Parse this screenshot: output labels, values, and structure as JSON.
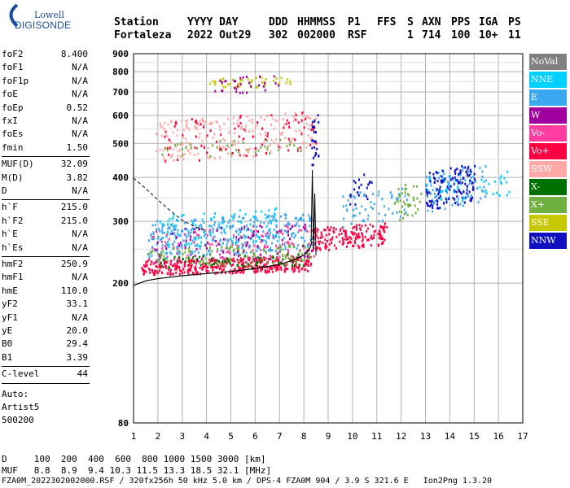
{
  "logo": {
    "line1": "Lowell",
    "line2": "DIGISONDE"
  },
  "header": {
    "row1": [
      "Station",
      "YYYY DAY",
      "DDD",
      "HHMMSS",
      "P1",
      "FFS",
      "S",
      "AXN",
      "PPS",
      "IGA",
      "PS"
    ],
    "row2": [
      "Fortaleza",
      "2022 Out29",
      "302",
      "002000",
      "RSF",
      "",
      "1",
      "714",
      "100",
      "10+",
      "11"
    ]
  },
  "params_group1": [
    {
      "k": "foF2",
      "v": "8.400"
    },
    {
      "k": "foF1",
      "v": "N/A"
    },
    {
      "k": "foF1p",
      "v": "N/A"
    },
    {
      "k": "foE",
      "v": "N/A"
    },
    {
      "k": "foEp",
      "v": "0.52"
    },
    {
      "k": "fxI",
      "v": "N/A"
    },
    {
      "k": "foEs",
      "v": "N/A"
    },
    {
      "k": "fmin",
      "v": "1.50"
    }
  ],
  "params_group2": [
    {
      "k": "MUF(D)",
      "v": "32.09"
    },
    {
      "k": "M(D)",
      "v": "3.82"
    },
    {
      "k": "D",
      "v": "N/A"
    }
  ],
  "params_group3": [
    {
      "k": "h`F",
      "v": "215.0"
    },
    {
      "k": "h`F2",
      "v": "215.0"
    },
    {
      "k": "h`E",
      "v": "N/A"
    },
    {
      "k": "h`Es",
      "v": "N/A"
    }
  ],
  "params_group4": [
    {
      "k": "hmF2",
      "v": "250.9"
    },
    {
      "k": "hmF1",
      "v": "N/A"
    },
    {
      "k": "hmE",
      "v": "110.0"
    },
    {
      "k": "yF2",
      "v": "33.1"
    },
    {
      "k": "yF1",
      "v": "N/A"
    },
    {
      "k": "yE",
      "v": "20.0"
    },
    {
      "k": "B0",
      "v": "29.4"
    },
    {
      "k": "B1",
      "v": "3.39"
    }
  ],
  "params_group5": [
    {
      "k": "C-level",
      "v": "44"
    }
  ],
  "auto": [
    "Auto:",
    "Artist5",
    "500200"
  ],
  "legend": [
    {
      "label": "NoVal",
      "color": "#808080"
    },
    {
      "label": "NNE",
      "color": "#00d0ff"
    },
    {
      "label": "E",
      "color": "#3aa8f0"
    },
    {
      "label": "W",
      "color": "#a000a0"
    },
    {
      "label": "Vo-",
      "color": "#ff3ca0"
    },
    {
      "label": "Vo+",
      "color": "#ff0040"
    },
    {
      "label": "SSW",
      "color": "#ffa8a8"
    },
    {
      "label": "X-",
      "color": "#007000"
    },
    {
      "label": "X+",
      "color": "#70b040"
    },
    {
      "label": "SSE",
      "color": "#c8c800"
    },
    {
      "label": "NNW",
      "color": "#1010c0"
    }
  ],
  "footer": {
    "line1": "D     100  200  400  600  800 1000 1500 3000 [km]",
    "line2": "MUF   8.8  8.9  9.4 10.3 11.5 13.3 18.5 32.1 [MHz]",
    "line3": "FZA0M_2022302002000.RSF / 320fx256h 50 kHz 5.0 km / DPS-4 FZA0M 904 / 3.9 S 321.6 E   Ion2Png 1.3.20"
  },
  "chart_data": {
    "type": "scatter",
    "title": "",
    "xlabel": "",
    "ylabel": "",
    "xlim": [
      1,
      17
    ],
    "ylim": [
      80,
      900
    ],
    "y_scale": "log",
    "x_ticks": [
      1,
      2,
      3,
      4,
      5,
      6,
      7,
      8,
      9,
      10,
      11,
      12,
      13,
      14,
      15,
      16,
      17
    ],
    "y_ticks": [
      80,
      200,
      300,
      400,
      500,
      600,
      700,
      800,
      900
    ],
    "grid": true,
    "legend_position": "right",
    "profile_curve": {
      "color": "#000000",
      "x": [
        1.0,
        1.5,
        2.0,
        3.0,
        4.0,
        5.0,
        6.0,
        7.0,
        7.5,
        8.0,
        8.2,
        8.35
      ],
      "y": [
        197,
        203,
        206,
        210,
        213,
        216,
        220,
        226,
        232,
        240,
        248,
        262
      ]
    },
    "dashed_curve": {
      "color": "#000000",
      "x": [
        1.0,
        1.5,
        2.0,
        2.5,
        3.0,
        3.5,
        4.0
      ],
      "y": [
        398,
        372,
        345,
        322,
        302,
        290,
        282
      ]
    },
    "vertical_trace": {
      "color": "#000000",
      "x": [
        8.3,
        8.35,
        8.4,
        8.45,
        8.5
      ],
      "y": [
        260,
        420,
        250,
        360,
        240
      ]
    },
    "clusters": [
      {
        "series": "Vo+",
        "x": [
          1.3,
          8.3
        ],
        "y": [
          212,
          240
        ],
        "n": 420
      },
      {
        "series": "Vo+",
        "x": [
          8.3,
          11.4
        ],
        "y": [
          248,
          300
        ],
        "n": 180
      },
      {
        "series": "Vo-",
        "x": [
          1.5,
          8.5
        ],
        "y": [
          225,
          300
        ],
        "n": 160
      },
      {
        "series": "E",
        "x": [
          1.6,
          8.4
        ],
        "y": [
          235,
          320
        ],
        "n": 320
      },
      {
        "series": "NNE",
        "x": [
          2.0,
          7.0
        ],
        "y": [
          250,
          330
        ],
        "n": 90
      },
      {
        "series": "X+",
        "x": [
          1.5,
          8.3
        ],
        "y": [
          220,
          260
        ],
        "n": 120
      },
      {
        "series": "X-",
        "x": [
          2.0,
          8.0
        ],
        "y": [
          220,
          245
        ],
        "n": 60
      },
      {
        "series": "W",
        "x": [
          1.8,
          8.3
        ],
        "y": [
          225,
          300
        ],
        "n": 80
      },
      {
        "series": "SSE",
        "x": [
          4.0,
          7.5
        ],
        "y": [
          720,
          780
        ],
        "n": 45
      },
      {
        "series": "W",
        "x": [
          3.6,
          7.0
        ],
        "y": [
          690,
          790
        ],
        "n": 30
      },
      {
        "series": "SSW",
        "x": [
          1.9,
          8.5
        ],
        "y": [
          440,
          620
        ],
        "n": 220
      },
      {
        "series": "Vo+",
        "x": [
          1.9,
          8.5
        ],
        "y": [
          440,
          620
        ],
        "n": 80
      },
      {
        "series": "X+",
        "x": [
          2.0,
          8.0
        ],
        "y": [
          450,
          520
        ],
        "n": 40
      },
      {
        "series": "NNW",
        "x": [
          8.3,
          8.6
        ],
        "y": [
          420,
          620
        ],
        "n": 25
      },
      {
        "series": "E",
        "x": [
          13.0,
          15.5
        ],
        "y": [
          320,
          440
        ],
        "n": 90
      },
      {
        "series": "NNW",
        "x": [
          13.0,
          15.0
        ],
        "y": [
          320,
          440
        ],
        "n": 130
      },
      {
        "series": "NNE",
        "x": [
          13.0,
          16.5
        ],
        "y": [
          340,
          420
        ],
        "n": 40
      },
      {
        "series": "X+",
        "x": [
          11.7,
          12.8
        ],
        "y": [
          300,
          400
        ],
        "n": 40
      },
      {
        "series": "E",
        "x": [
          9.5,
          12.3
        ],
        "y": [
          290,
          380
        ],
        "n": 60
      },
      {
        "series": "NNW",
        "x": [
          9.8,
          10.8
        ],
        "y": [
          330,
          420
        ],
        "n": 20
      }
    ]
  }
}
